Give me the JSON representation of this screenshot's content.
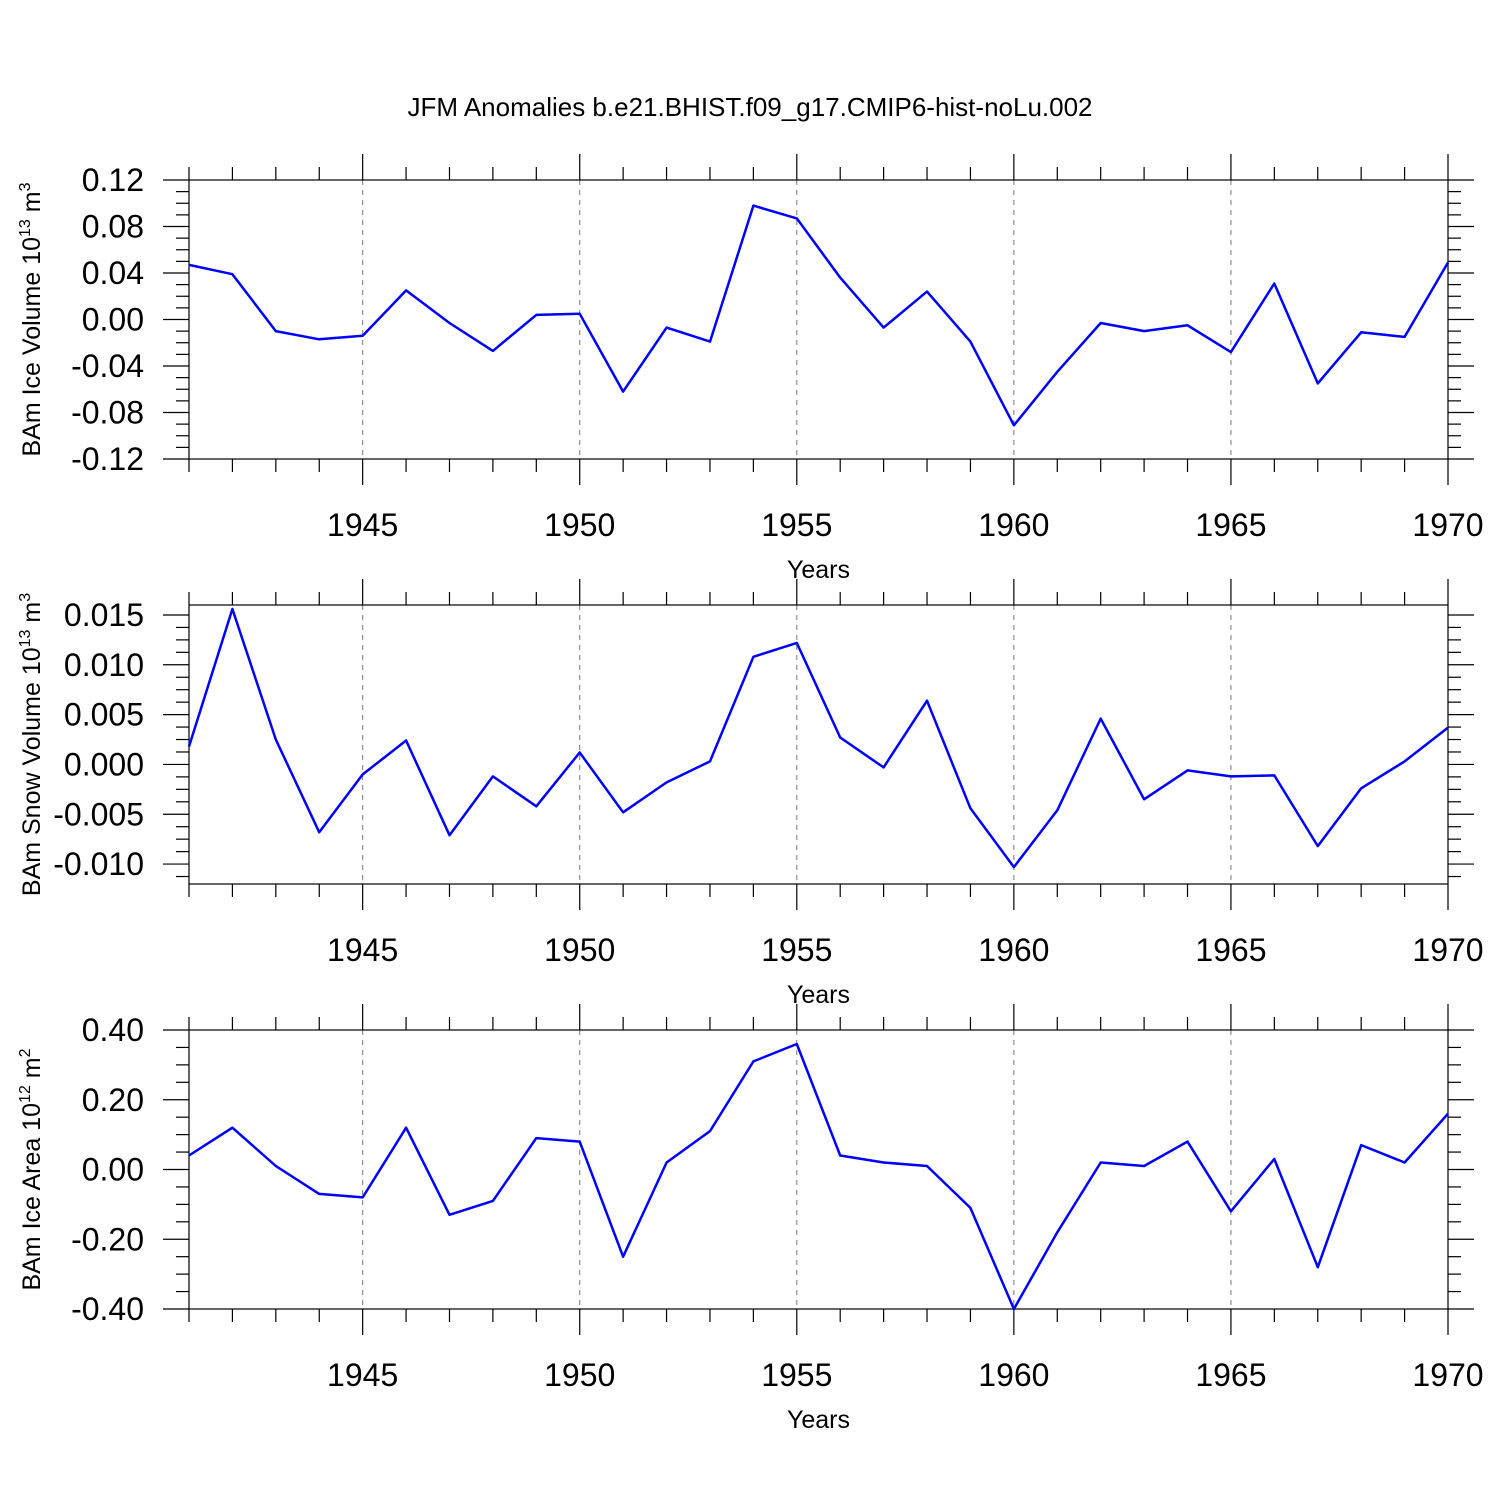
{
  "title": "JFM Anomalies b.e21.BHIST.f09_g17.CMIP6-hist-noLu.002",
  "series_color": "#0000ff",
  "chart_data": [
    {
      "type": "line",
      "ylabel": "BAm Ice Volume 10",
      "ylabel_sup": "13",
      "ylabel_unit": "m",
      "ylabel_unit_sup": "3",
      "xlabel": "Years",
      "x": [
        1941,
        1942,
        1943,
        1944,
        1945,
        1946,
        1947,
        1948,
        1949,
        1950,
        1951,
        1952,
        1953,
        1954,
        1955,
        1956,
        1957,
        1958,
        1959,
        1960,
        1961,
        1962,
        1963,
        1964,
        1965,
        1966,
        1967,
        1968,
        1969,
        1970
      ],
      "values": [
        0.047,
        0.039,
        -0.01,
        -0.017,
        -0.014,
        0.025,
        -0.003,
        -0.027,
        0.004,
        0.005,
        -0.062,
        -0.007,
        -0.019,
        0.098,
        0.087,
        0.036,
        -0.007,
        0.024,
        -0.019,
        -0.091,
        -0.045,
        -0.003,
        -0.01,
        -0.005,
        -0.028,
        0.031,
        -0.055,
        -0.011,
        -0.015,
        0.049
      ],
      "xlim": [
        1941,
        1970
      ],
      "ylim": [
        -0.12,
        0.12
      ],
      "x_ticks": [
        1945,
        1950,
        1955,
        1960,
        1965,
        1970
      ],
      "x_tick_labels": [
        "1945",
        "1950",
        "1955",
        "1960",
        "1965",
        "1970"
      ],
      "y_ticks": [
        -0.12,
        -0.08,
        -0.04,
        0.0,
        0.04,
        0.08,
        0.12
      ],
      "y_tick_labels": [
        "-0.12",
        "-0.08",
        "-0.04",
        "0.00",
        "0.04",
        "0.08",
        "0.12"
      ],
      "grid": "dashed vertical at major x ticks"
    },
    {
      "type": "line",
      "ylabel": "BAm Snow Volume 10",
      "ylabel_sup": "13",
      "ylabel_unit": "m",
      "ylabel_unit_sup": "3",
      "xlabel": "Years",
      "x": [
        1941,
        1942,
        1943,
        1944,
        1945,
        1946,
        1947,
        1948,
        1949,
        1950,
        1951,
        1952,
        1953,
        1954,
        1955,
        1956,
        1957,
        1958,
        1959,
        1960,
        1961,
        1962,
        1963,
        1964,
        1965,
        1966,
        1967,
        1968,
        1969,
        1970
      ],
      "values": [
        0.0018,
        0.0156,
        0.0025,
        -0.0068,
        -0.001,
        0.0024,
        -0.0071,
        -0.0012,
        -0.0042,
        0.0012,
        -0.0048,
        -0.0018,
        0.0003,
        0.0108,
        0.0122,
        0.0027,
        -0.0003,
        0.0064,
        -0.0044,
        -0.0103,
        -0.0046,
        0.0046,
        -0.0035,
        -0.0006,
        -0.0012,
        -0.0011,
        -0.0082,
        -0.0024,
        0.0003,
        0.0037
      ],
      "xlim": [
        1941,
        1970
      ],
      "ylim": [
        -0.012,
        0.016
      ],
      "x_ticks": [
        1945,
        1950,
        1955,
        1960,
        1965,
        1970
      ],
      "x_tick_labels": [
        "1945",
        "1950",
        "1955",
        "1960",
        "1965",
        "1970"
      ],
      "y_ticks": [
        -0.01,
        -0.005,
        0.0,
        0.005,
        0.01,
        0.015
      ],
      "y_tick_labels": [
        "-0.010",
        "-0.005",
        "0.000",
        "0.005",
        "0.010",
        "0.015"
      ],
      "grid": "dashed vertical at major x ticks"
    },
    {
      "type": "line",
      "ylabel": "BAm Ice Area 10",
      "ylabel_sup": "12",
      "ylabel_unit": "m",
      "ylabel_unit_sup": "2",
      "xlabel": "Years",
      "x": [
        1941,
        1942,
        1943,
        1944,
        1945,
        1946,
        1947,
        1948,
        1949,
        1950,
        1951,
        1952,
        1953,
        1954,
        1955,
        1956,
        1957,
        1958,
        1959,
        1960,
        1961,
        1962,
        1963,
        1964,
        1965,
        1966,
        1967,
        1968,
        1969,
        1970
      ],
      "values": [
        0.04,
        0.12,
        0.01,
        -0.07,
        -0.08,
        0.12,
        -0.13,
        -0.09,
        0.09,
        0.08,
        -0.25,
        0.02,
        0.11,
        0.31,
        0.36,
        0.04,
        0.02,
        0.01,
        -0.11,
        -0.4,
        -0.18,
        0.02,
        0.01,
        0.08,
        -0.12,
        0.03,
        -0.28,
        0.07,
        0.02,
        0.16
      ],
      "xlim": [
        1941,
        1970
      ],
      "ylim": [
        -0.4,
        0.4
      ],
      "x_ticks": [
        1945,
        1950,
        1955,
        1960,
        1965,
        1970
      ],
      "x_tick_labels": [
        "1945",
        "1950",
        "1955",
        "1960",
        "1965",
        "1970"
      ],
      "y_ticks": [
        -0.4,
        -0.2,
        0.0,
        0.2,
        0.4
      ],
      "y_tick_labels": [
        "-0.40",
        "-0.20",
        "0.00",
        "0.20",
        "0.40"
      ],
      "grid": "dashed vertical at major x ticks"
    }
  ]
}
